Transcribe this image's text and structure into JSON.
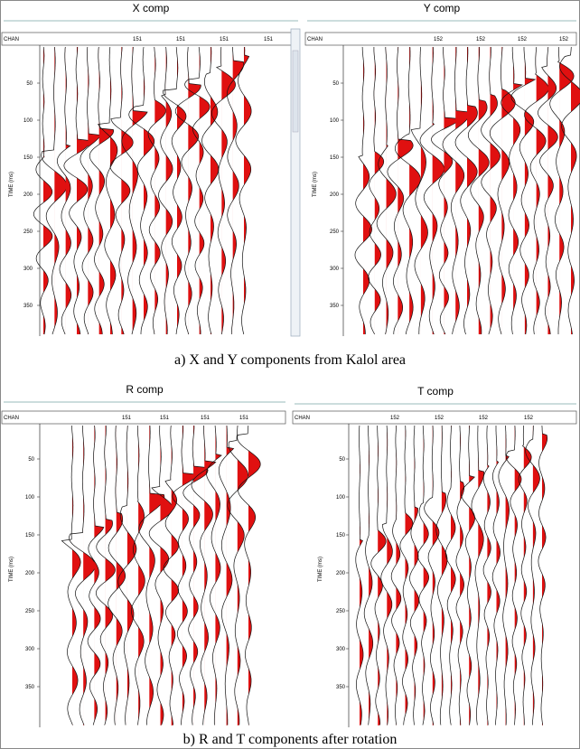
{
  "panels": [
    {
      "title": "X comp",
      "header_label": "CHAN",
      "channel_labels": [
        "151",
        "151",
        "151",
        "151"
      ],
      "axis_label": "TIME (ms)",
      "time_ticks": [
        50,
        100,
        150,
        200,
        250,
        300,
        350
      ]
    },
    {
      "title": "Y comp",
      "header_label": "CHAN",
      "channel_labels": [
        "152",
        "152",
        "152",
        "152"
      ],
      "axis_label": "TIME (ms)",
      "time_ticks": [
        50,
        100,
        150,
        200,
        250,
        300,
        350
      ]
    },
    {
      "title": "R comp",
      "header_label": "CHAN",
      "channel_labels": [
        "151",
        "151",
        "151",
        "151"
      ],
      "axis_label": "TIME (ms)",
      "time_ticks": [
        50,
        100,
        150,
        200,
        250,
        300,
        350
      ]
    },
    {
      "title": "T comp",
      "header_label": "CHAN",
      "channel_labels": [
        "152",
        "152",
        "152",
        "152"
      ],
      "axis_label": "TIME (ms)",
      "time_ticks": [
        50,
        100,
        150,
        200,
        250,
        300,
        350
      ]
    }
  ],
  "captions": [
    "a) X and Y components from Kalol area",
    "b) R and T components after rotation"
  ]
}
